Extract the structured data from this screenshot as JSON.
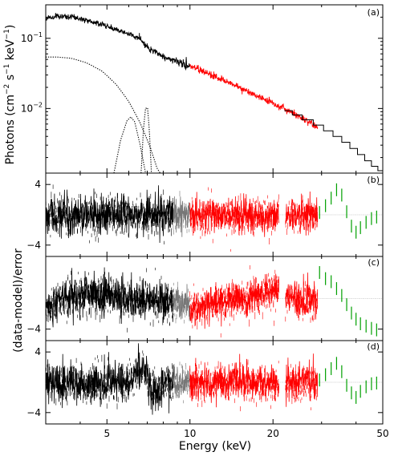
{
  "chart_data": [
    {
      "panel": "(a)",
      "type": "line",
      "ylabel": "Photons (cm",
      "ylabel_exp1": "−2",
      "ylabel_mid": " s",
      "ylabel_exp2": "−1",
      "ylabel_end": " keV",
      "ylabel_exp3": "−1",
      "ylabel_close": ")",
      "xscale": "log",
      "yscale": "log",
      "xlim": [
        3,
        50
      ],
      "ylim": [
        0.0012,
        0.3
      ],
      "yticks": [
        {
          "value": 0.1,
          "base": "10",
          "exp": "−1"
        },
        {
          "value": 0.01,
          "base": "10",
          "exp": "−2"
        }
      ],
      "series": [
        {
          "color": "#000000",
          "x_range": [
            3,
            10
          ],
          "points": [
            [
              3,
              0.19
            ],
            [
              3.3,
              0.205
            ],
            [
              3.8,
              0.2
            ],
            [
              4.5,
              0.17
            ],
            [
              5.5,
              0.13
            ],
            [
              6.3,
              0.105
            ],
            [
              6.6,
              0.1
            ],
            [
              6.75,
              0.085
            ],
            [
              7.1,
              0.072
            ],
            [
              8,
              0.055
            ],
            [
              9,
              0.046
            ],
            [
              10,
              0.04
            ]
          ]
        },
        {
          "color": "#ff0000",
          "x_range": [
            10,
            29
          ],
          "points": [
            [
              10,
              0.04
            ],
            [
              12,
              0.03
            ],
            [
              15,
              0.02
            ],
            [
              18,
              0.0145
            ],
            [
              21,
              0.0108
            ],
            [
              24,
              0.0082
            ],
            [
              27,
              0.0063
            ],
            [
              29,
              0.0053
            ]
          ]
        },
        {
          "color": "#000000",
          "style": "step",
          "x_range": [
            22,
            50
          ],
          "steps": [
            [
              22,
              23.5,
              0.0093
            ],
            [
              23.5,
              25.5,
              0.0081
            ],
            [
              25.5,
              28,
              0.0069
            ],
            [
              28,
              30.5,
              0.0058
            ],
            [
              30.5,
              33,
              0.0048
            ],
            [
              33,
              35.5,
              0.004
            ],
            [
              35.5,
              38,
              0.0033
            ],
            [
              38,
              40.5,
              0.0027
            ],
            [
              40.5,
              43,
              0.0022
            ],
            [
              43,
              45.5,
              0.0018
            ],
            [
              45.5,
              48,
              0.0015
            ],
            [
              48,
              50,
              0.0013
            ]
          ]
        },
        {
          "color": "#000000",
          "style": "dotted",
          "component": "continuum",
          "points": [
            [
              3,
              0.054
            ],
            [
              3.3,
              0.054
            ],
            [
              3.7,
              0.052
            ],
            [
              4.2,
              0.045
            ],
            [
              4.8,
              0.034
            ],
            [
              5.4,
              0.022
            ],
            [
              6,
              0.0125
            ],
            [
              6.6,
              0.0062
            ],
            [
              7.2,
              0.0027
            ],
            [
              7.6,
              0.0014
            ],
            [
              7.8,
              0.0012
            ]
          ]
        },
        {
          "color": "#000000",
          "style": "dotted",
          "component": "broad-line",
          "points": [
            [
              5.3,
              0.0012
            ],
            [
              5.6,
              0.0035
            ],
            [
              5.9,
              0.0066
            ],
            [
              6.1,
              0.0076
            ],
            [
              6.3,
              0.0065
            ],
            [
              6.6,
              0.003
            ],
            [
              6.9,
              0.0012
            ]
          ]
        },
        {
          "color": "#000000",
          "style": "dotted",
          "component": "narrow-line",
          "points": [
            [
              6.65,
              0.0012
            ],
            [
              6.78,
              0.005
            ],
            [
              6.9,
              0.01
            ],
            [
              7.02,
              0.0102
            ],
            [
              7.12,
              0.005
            ],
            [
              7.25,
              0.0012
            ]
          ]
        }
      ]
    },
    {
      "panel": "(b)",
      "type": "line",
      "ylim": [
        -5.5,
        5.5
      ],
      "yticks": [
        4,
        -4
      ],
      "reference_line": 0,
      "segments": [
        {
          "color": "#000000",
          "x_range": [
            3,
            8.7
          ],
          "amplitude": 2.2,
          "offset": 0
        },
        {
          "color": "#777777",
          "x_range": [
            8.7,
            10
          ],
          "amplitude": 1.8,
          "offset": 0
        },
        {
          "color": "#ff0000",
          "x_range": [
            10,
            21
          ],
          "amplitude": 2.0,
          "offset": 0
        },
        {
          "color": "#ff0000",
          "x_range": [
            22.2,
            29
          ],
          "amplitude": 2.0,
          "offset": 0
        }
      ],
      "green_points": [
        [
          29.5,
          0.3
        ],
        [
          31,
          1.2
        ],
        [
          32.5,
          2.2
        ],
        [
          34,
          3.3
        ],
        [
          35.5,
          2.6
        ],
        [
          37,
          0.4
        ],
        [
          38.5,
          -1.5
        ],
        [
          40,
          -2.3
        ],
        [
          41.5,
          -1.7
        ],
        [
          43.5,
          -1.0
        ],
        [
          45.5,
          -0.5
        ],
        [
          47.5,
          -0.3
        ]
      ]
    },
    {
      "panel": "(c)",
      "type": "line",
      "ylim": [
        -5.5,
        5.5
      ],
      "yticks": [
        -4
      ],
      "reference_line": 0,
      "segments": [
        {
          "color": "#000000",
          "x_range": [
            3,
            8.7
          ],
          "amplitude": 2.2,
          "offset_curve": [
            [
              3,
              -1.2
            ],
            [
              3.7,
              0.6
            ],
            [
              4.5,
              0.6
            ],
            [
              6,
              0
            ],
            [
              8.7,
              -0.3
            ]
          ]
        },
        {
          "color": "#777777",
          "x_range": [
            8.7,
            10
          ],
          "amplitude": 1.8,
          "offset_curve": [
            [
              8.7,
              -0.4
            ],
            [
              10,
              -0.8
            ]
          ]
        },
        {
          "color": "#ff0000",
          "x_range": [
            10,
            21
          ],
          "amplitude": 2.0,
          "offset_curve": [
            [
              10,
              -1.2
            ],
            [
              14,
              -0.2
            ],
            [
              21,
              1.2
            ]
          ]
        },
        {
          "color": "#ff0000",
          "x_range": [
            22.2,
            29
          ],
          "amplitude": 2.0,
          "offset_curve": [
            [
              22.2,
              0.3
            ],
            [
              29,
              -0.5
            ]
          ]
        }
      ],
      "green_points": [
        [
          29.5,
          3.4
        ],
        [
          31,
          2.6
        ],
        [
          32.5,
          2.2
        ],
        [
          34,
          1.3
        ],
        [
          35.5,
          0.4
        ],
        [
          37,
          -0.8
        ],
        [
          38.5,
          -1.9
        ],
        [
          40,
          -2.7
        ],
        [
          41.5,
          -3.3
        ],
        [
          43.5,
          -3.6
        ],
        [
          45.5,
          -3.9
        ],
        [
          47.5,
          -4.1
        ]
      ]
    },
    {
      "panel": "(d)",
      "type": "line",
      "ylim": [
        -5.5,
        5.5
      ],
      "yticks": [
        4,
        -4
      ],
      "reference_line": 0,
      "segments": [
        {
          "color": "#000000",
          "x_range": [
            3,
            8.7
          ],
          "amplitude": 2.2,
          "offset_curve": [
            [
              3,
              0
            ],
            [
              6,
              0
            ],
            [
              6.5,
              1.5
            ],
            [
              6.8,
              1.8
            ],
            [
              7.2,
              -0.8
            ],
            [
              7.6,
              -1.8
            ],
            [
              8.1,
              0.3
            ],
            [
              8.7,
              0
            ]
          ]
        },
        {
          "color": "#777777",
          "x_range": [
            8.7,
            10
          ],
          "amplitude": 1.8,
          "offset_curve": [
            [
              8.7,
              0
            ],
            [
              10,
              0
            ]
          ]
        },
        {
          "color": "#ff0000",
          "x_range": [
            10,
            21
          ],
          "amplitude": 2.0,
          "offset_curve": [
            [
              10,
              0
            ],
            [
              21,
              0
            ]
          ]
        },
        {
          "color": "#ff0000",
          "x_range": [
            22.2,
            29
          ],
          "amplitude": 2.0,
          "offset_curve": [
            [
              22.2,
              0
            ],
            [
              29,
              0
            ]
          ]
        }
      ],
      "green_points": [
        [
          29.5,
          0.3
        ],
        [
          31,
          1.0
        ],
        [
          32.5,
          1.8
        ],
        [
          34,
          2.5
        ],
        [
          35.5,
          1.4
        ],
        [
          37,
          -0.4
        ],
        [
          38.5,
          -1.4
        ],
        [
          40,
          -2.0
        ],
        [
          41.5,
          -1.2
        ],
        [
          43.5,
          -0.6
        ],
        [
          45.5,
          -0.2
        ],
        [
          47.5,
          -0.1
        ]
      ]
    }
  ],
  "xaxis": {
    "xlabel": "Energy (keV)",
    "xlim": [
      3,
      50
    ],
    "scale": "log",
    "ticks": [
      5,
      10,
      20,
      50
    ],
    "tick_labels": [
      "5",
      "10",
      "20",
      "50"
    ],
    "minor_ticks": [
      3,
      4,
      6,
      7,
      8,
      9,
      30,
      40
    ]
  },
  "shared_ylabel": "(data-model)/error",
  "colors": {
    "xmm": "#000000",
    "xmm_high": "#777777",
    "nustar": "#ff0000",
    "high_energy": "#00a000",
    "reference_line": "#888888"
  }
}
